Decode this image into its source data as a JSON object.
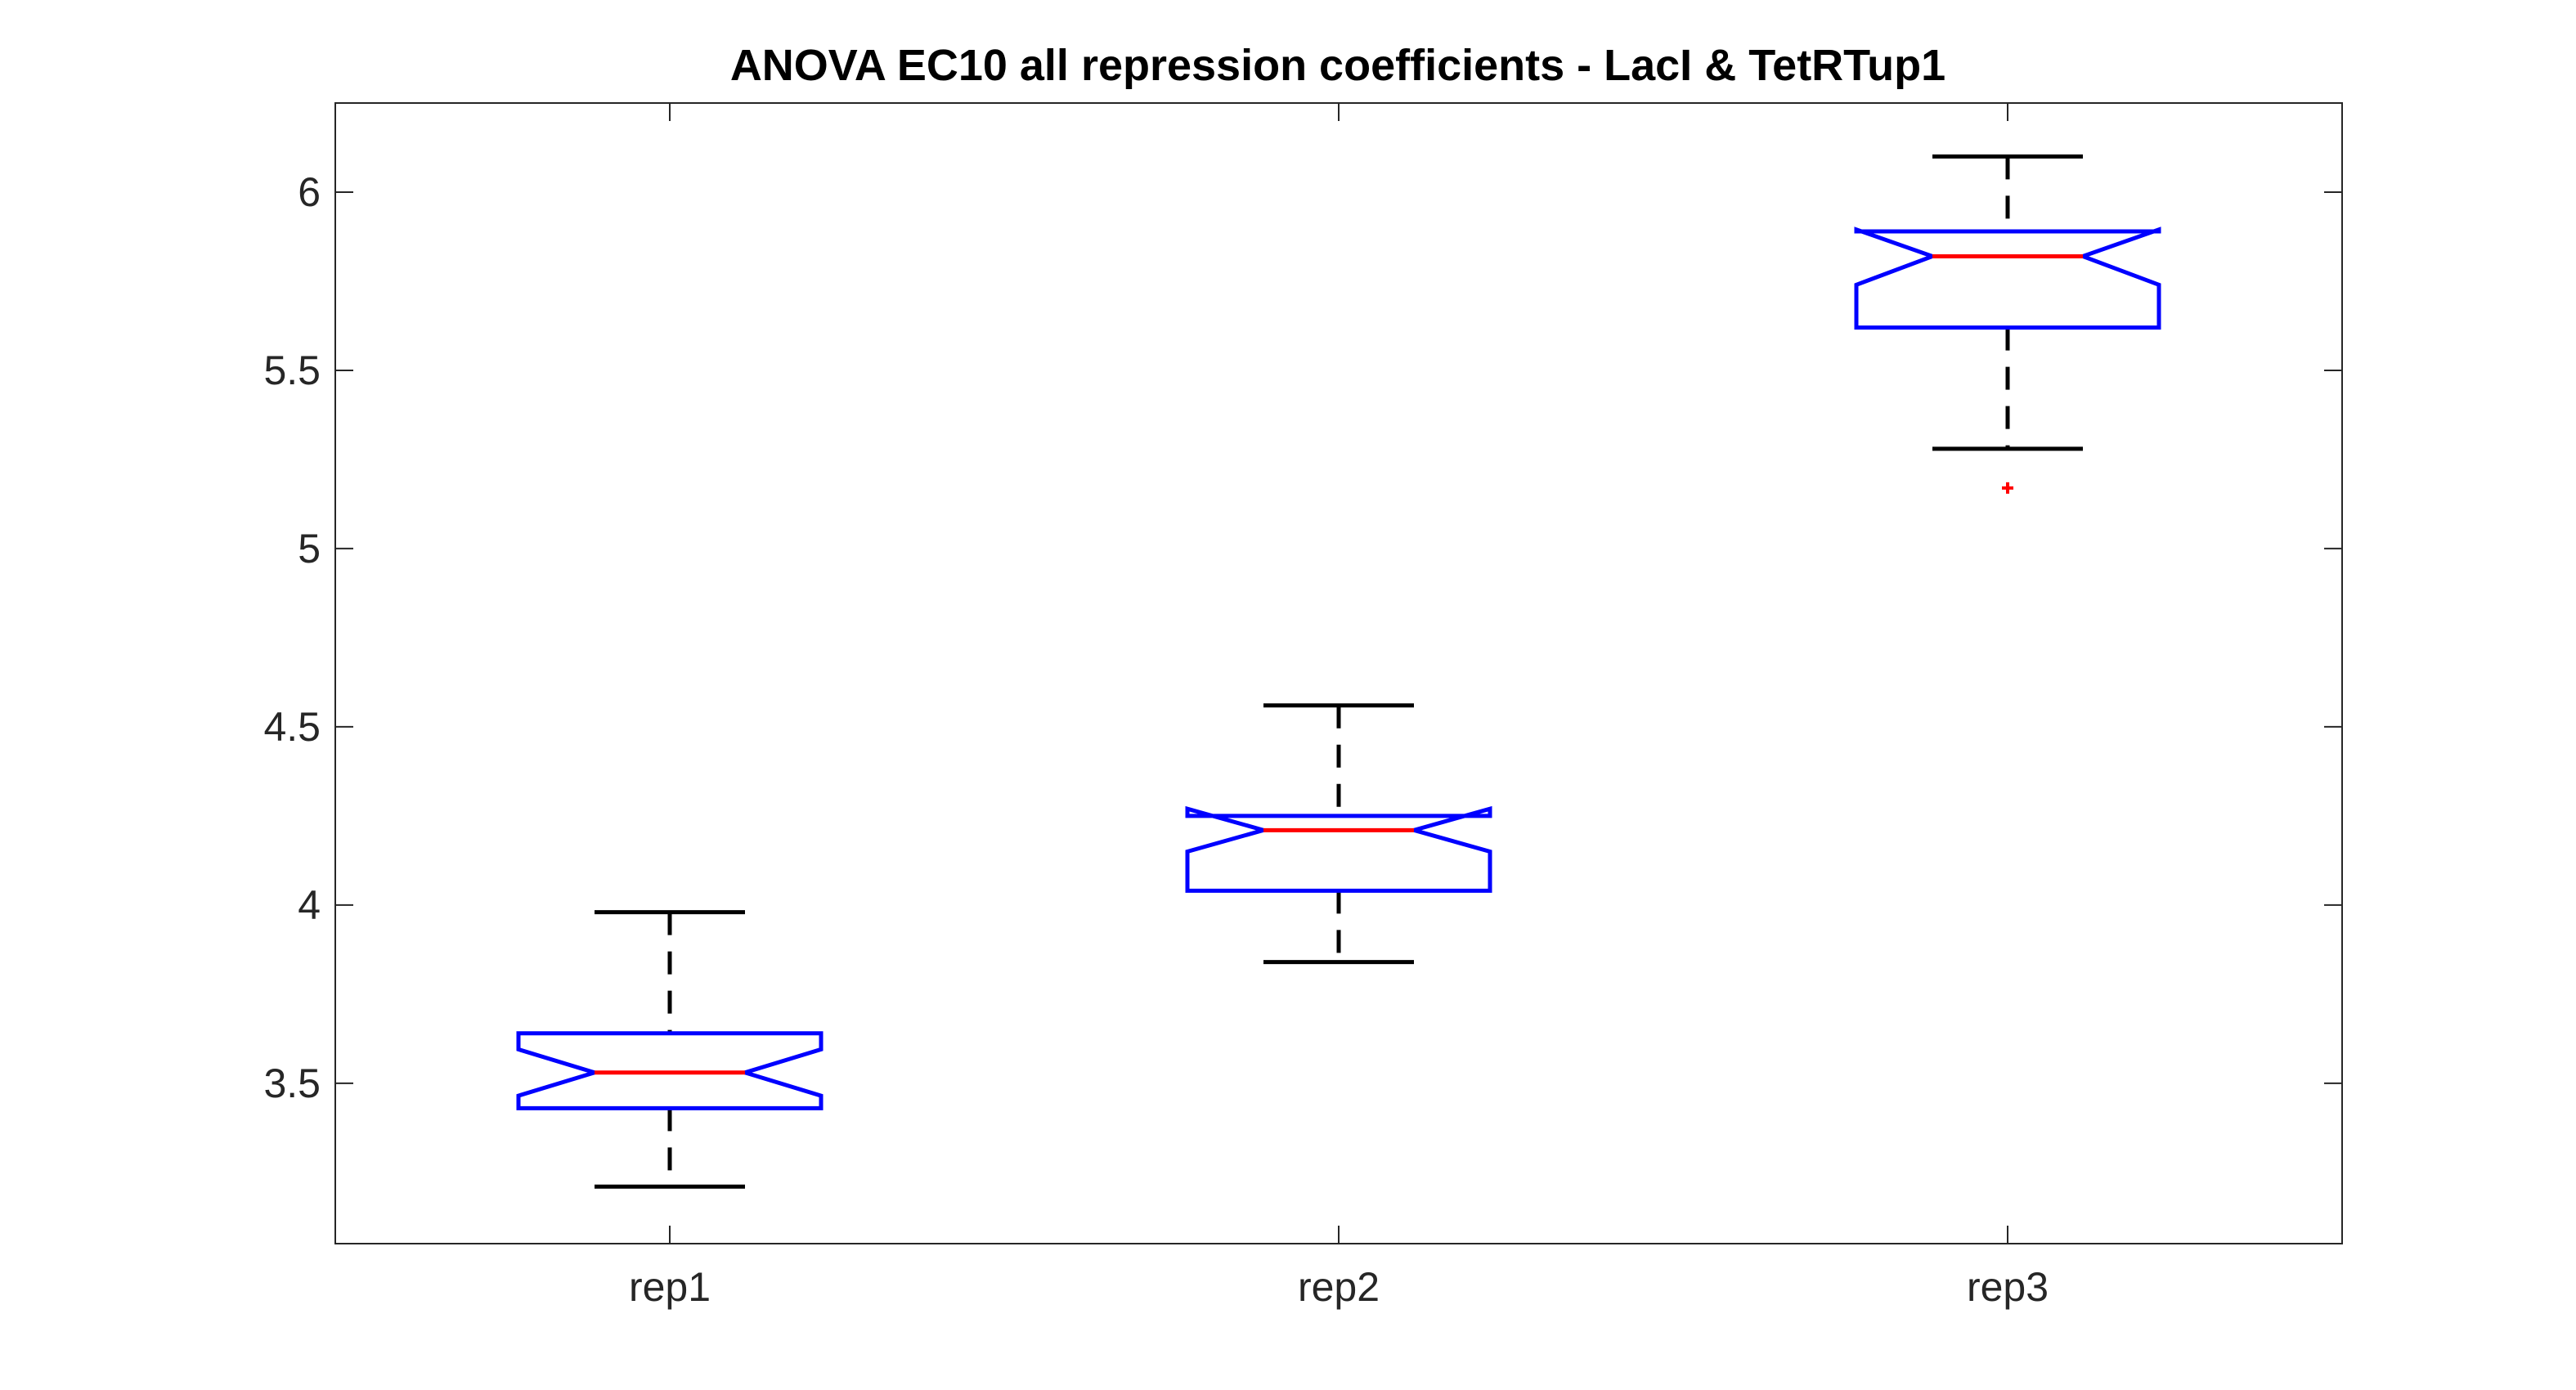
{
  "chart_data": {
    "type": "boxplot",
    "title": "ANOVA  EC10 all repression coefficients - LacI & TetRTup1",
    "xlabel": "",
    "ylabel": "",
    "categories": [
      "rep1",
      "rep2",
      "rep3"
    ],
    "ylim": [
      3.05,
      6.25
    ],
    "yticks": [
      3.5,
      4,
      4.5,
      5,
      5.5,
      6
    ],
    "ytick_labels": [
      "3.5",
      "4",
      "4.5",
      "5",
      "5.5",
      "6"
    ],
    "notched": true,
    "grid": false,
    "boxes": [
      {
        "category": "rep1",
        "whisker_low": 3.21,
        "q1": 3.43,
        "median": 3.53,
        "q3": 3.64,
        "whisker_high": 3.98,
        "notch_low": 3.465,
        "notch_high": 3.595,
        "outliers": []
      },
      {
        "category": "rep2",
        "whisker_low": 3.84,
        "q1": 4.04,
        "median": 4.21,
        "q3": 4.25,
        "whisker_high": 4.56,
        "notch_low": 4.15,
        "notch_high": 4.27,
        "outliers": []
      },
      {
        "category": "rep3",
        "whisker_low": 5.28,
        "q1": 5.62,
        "median": 5.82,
        "q3": 5.89,
        "whisker_high": 6.1,
        "notch_low": 5.74,
        "notch_high": 5.895,
        "outliers": [
          5.17
        ]
      }
    ],
    "colors": {
      "box": "#0000ff",
      "median": "#ff0000",
      "whisker": "#000000",
      "outlier": "#ff0000",
      "axis": "#262626"
    }
  }
}
